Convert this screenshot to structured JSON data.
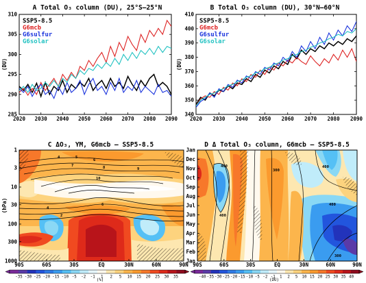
{
  "chart_data": [
    {
      "id": "A",
      "type": "line",
      "title": "A  Total O₃ column (DU), 25°S–25°N",
      "ylabel": "(DU)",
      "xlim": [
        2020,
        2090
      ],
      "ylim": [
        285,
        310
      ],
      "xticks": [
        2020,
        2030,
        2040,
        2050,
        2060,
        2070,
        2080,
        2090
      ],
      "yticks": [
        285,
        290,
        295,
        300,
        305,
        310
      ],
      "legend_position": "top-left",
      "series": [
        {
          "name": "SSP5-8.5",
          "color": "#000000",
          "x": [
            2020,
            2022,
            2024,
            2026,
            2028,
            2030,
            2032,
            2034,
            2036,
            2038,
            2040,
            2042,
            2044,
            2046,
            2048,
            2050,
            2052,
            2054,
            2056,
            2058,
            2060,
            2062,
            2064,
            2066,
            2068,
            2070,
            2072,
            2074,
            2076,
            2078,
            2080,
            2082,
            2084,
            2086,
            2088,
            2090
          ],
          "values": [
            292.0,
            291.0,
            292.5,
            290.5,
            292.8,
            289.5,
            293.0,
            290.0,
            292.0,
            291.0,
            293.5,
            290.5,
            292.5,
            291.5,
            293.0,
            292.0,
            294.0,
            291.0,
            292.5,
            293.5,
            291.5,
            294.0,
            292.0,
            293.0,
            291.5,
            294.5,
            292.5,
            291.0,
            293.5,
            292.0,
            294.0,
            295.0,
            292.0,
            293.0,
            292.0,
            290.0
          ]
        },
        {
          "name": "G6mcb",
          "color": "#dd2222",
          "x": [
            2020,
            2022,
            2024,
            2026,
            2028,
            2030,
            2032,
            2034,
            2036,
            2038,
            2040,
            2042,
            2044,
            2046,
            2048,
            2050,
            2052,
            2054,
            2056,
            2058,
            2060,
            2062,
            2064,
            2066,
            2068,
            2070,
            2072,
            2074,
            2076,
            2078,
            2080,
            2082,
            2084,
            2086,
            2088,
            2090
          ],
          "values": [
            290.5,
            291.5,
            289.8,
            291.5,
            290.0,
            293.0,
            291.0,
            292.5,
            294.0,
            292.0,
            295.0,
            293.5,
            295.5,
            294.0,
            297.0,
            296.0,
            298.5,
            297.0,
            299.0,
            300.5,
            298.0,
            302.0,
            299.5,
            303.0,
            301.0,
            304.5,
            302.5,
            301.0,
            305.0,
            303.0,
            306.0,
            304.5,
            306.5,
            305.0,
            308.5,
            307.0
          ]
        },
        {
          "name": "G6sulfur",
          "color": "#1a33dd",
          "x": [
            2020,
            2022,
            2024,
            2026,
            2028,
            2030,
            2032,
            2034,
            2036,
            2038,
            2040,
            2042,
            2044,
            2046,
            2048,
            2050,
            2052,
            2054,
            2056,
            2058,
            2060,
            2062,
            2064,
            2066,
            2068,
            2070,
            2072,
            2074,
            2076,
            2078,
            2080,
            2082,
            2084,
            2086,
            2088,
            2090
          ],
          "values": [
            291.5,
            290.5,
            292.0,
            289.5,
            291.5,
            292.5,
            290.0,
            291.0,
            289.0,
            292.0,
            290.0,
            293.0,
            290.5,
            291.5,
            293.5,
            290.0,
            292.5,
            294.0,
            291.0,
            292.0,
            290.0,
            293.0,
            291.0,
            294.0,
            290.5,
            292.0,
            291.0,
            293.5,
            290.5,
            292.0,
            291.0,
            290.0,
            292.5,
            290.5,
            291.0,
            289.5
          ]
        },
        {
          "name": "G6solar",
          "color": "#22c2c2",
          "x": [
            2020,
            2022,
            2024,
            2026,
            2028,
            2030,
            2032,
            2034,
            2036,
            2038,
            2040,
            2042,
            2044,
            2046,
            2048,
            2050,
            2052,
            2054,
            2056,
            2058,
            2060,
            2062,
            2064,
            2066,
            2068,
            2070,
            2072,
            2074,
            2076,
            2078,
            2080,
            2082,
            2084,
            2086,
            2088,
            2090
          ],
          "values": [
            291.0,
            292.0,
            290.5,
            292.5,
            291.0,
            291.5,
            293.0,
            292.0,
            293.5,
            292.0,
            294.0,
            293.0,
            295.0,
            294.0,
            296.0,
            295.0,
            296.5,
            296.0,
            297.5,
            296.5,
            298.0,
            297.0,
            299.0,
            297.5,
            300.0,
            298.5,
            300.5,
            299.0,
            301.0,
            300.0,
            301.5,
            300.0,
            302.0,
            300.5,
            302.0,
            301.5
          ]
        }
      ]
    },
    {
      "id": "B",
      "type": "line",
      "title": "B  Total O₃ column (DU), 30°N–60°N",
      "ylabel": "(DU)",
      "xlim": [
        2020,
        2090
      ],
      "ylim": [
        340,
        410
      ],
      "xticks": [
        2020,
        2030,
        2040,
        2050,
        2060,
        2070,
        2080,
        2090
      ],
      "yticks": [
        340,
        350,
        360,
        370,
        380,
        390,
        400,
        410
      ],
      "legend_position": "top-left",
      "series": [
        {
          "name": "SSP5-8.5",
          "color": "#000000",
          "x": [
            2020,
            2022,
            2024,
            2026,
            2028,
            2030,
            2032,
            2034,
            2036,
            2038,
            2040,
            2042,
            2044,
            2046,
            2048,
            2050,
            2052,
            2054,
            2056,
            2058,
            2060,
            2062,
            2064,
            2066,
            2068,
            2070,
            2072,
            2074,
            2076,
            2078,
            2080,
            2082,
            2084,
            2086,
            2088,
            2090
          ],
          "values": [
            347,
            352,
            350,
            355,
            353,
            357,
            356,
            360,
            358,
            362,
            361,
            365,
            363,
            368,
            366,
            371,
            369,
            374,
            372,
            377,
            375,
            382,
            379,
            385,
            382,
            386,
            384,
            388,
            386,
            390,
            388,
            391,
            389,
            393,
            391,
            395
          ]
        },
        {
          "name": "G6mcb",
          "color": "#dd2222",
          "x": [
            2020,
            2022,
            2024,
            2026,
            2028,
            2030,
            2032,
            2034,
            2036,
            2038,
            2040,
            2042,
            2044,
            2046,
            2048,
            2050,
            2052,
            2054,
            2056,
            2058,
            2060,
            2062,
            2064,
            2066,
            2068,
            2070,
            2072,
            2074,
            2076,
            2078,
            2080,
            2082,
            2084,
            2086,
            2088,
            2090
          ],
          "values": [
            346,
            351,
            353,
            352,
            356,
            354,
            359,
            357,
            362,
            360,
            365,
            363,
            368,
            366,
            371,
            368,
            373,
            371,
            376,
            374,
            378,
            376,
            380,
            377,
            375,
            381,
            377,
            374,
            379,
            376,
            382,
            378,
            385,
            380,
            386,
            377
          ]
        },
        {
          "name": "G6sulfur",
          "color": "#1a33dd",
          "x": [
            2020,
            2022,
            2024,
            2026,
            2028,
            2030,
            2032,
            2034,
            2036,
            2038,
            2040,
            2042,
            2044,
            2046,
            2048,
            2050,
            2052,
            2054,
            2056,
            2058,
            2060,
            2062,
            2064,
            2066,
            2068,
            2070,
            2072,
            2074,
            2076,
            2078,
            2080,
            2082,
            2084,
            2086,
            2088,
            2090
          ],
          "values": [
            345,
            349,
            351,
            355,
            352,
            358,
            356,
            361,
            359,
            364,
            362,
            367,
            365,
            370,
            368,
            373,
            371,
            376,
            374,
            380,
            377,
            384,
            380,
            388,
            384,
            391,
            386,
            394,
            389,
            397,
            392,
            399,
            395,
            402,
            398,
            405
          ]
        },
        {
          "name": "G6solar",
          "color": "#22c2c2",
          "x": [
            2020,
            2022,
            2024,
            2026,
            2028,
            2030,
            2032,
            2034,
            2036,
            2038,
            2040,
            2042,
            2044,
            2046,
            2048,
            2050,
            2052,
            2054,
            2056,
            2058,
            2060,
            2062,
            2064,
            2066,
            2068,
            2070,
            2072,
            2074,
            2076,
            2078,
            2080,
            2082,
            2084,
            2086,
            2088,
            2090
          ],
          "values": [
            346,
            350,
            352,
            354,
            355,
            357,
            358,
            360,
            361,
            363,
            364,
            366,
            367,
            369,
            370,
            372,
            373,
            375,
            376,
            378,
            379,
            381,
            382,
            384,
            385,
            387,
            388,
            390,
            391,
            393,
            394,
            396,
            395,
            398,
            397,
            400
          ]
        }
      ]
    },
    {
      "id": "C",
      "type": "heatmap",
      "title": "C  ΔO₃, YM, G6mcb – SSP5-8.5",
      "ylabel": "(hPa)",
      "xticks": [
        "90S",
        "60S",
        "30S",
        "EQ",
        "30N",
        "60N",
        "90N"
      ],
      "yticks": [
        "1",
        "3",
        "10",
        "30",
        "100",
        "300",
        "1000"
      ],
      "ylim": [
        1000,
        1
      ],
      "log_scale_y": true,
      "colorbar_unit": "(%)",
      "colorbar_ticks": [
        -35,
        -30,
        -25,
        -20,
        -15,
        -10,
        -5,
        -2,
        -1,
        1,
        2,
        5,
        10,
        15,
        20,
        25,
        30,
        35
      ],
      "contour_labels": [
        "4",
        "5",
        "6",
        "7",
        "8",
        "9",
        "10",
        "2",
        "4",
        "6"
      ]
    },
    {
      "id": "D",
      "type": "heatmap",
      "title": "D  Δ Total O₃ column, G6mcb – SSP5-8.5",
      "ylabel": "",
      "xticks": [
        "90S",
        "60S",
        "30S",
        "EQ",
        "30N",
        "60N",
        "90N"
      ],
      "yticks": [
        "Jan",
        "Feb",
        "Mar",
        "Apr",
        "May",
        "Jun",
        "Jul",
        "Aug",
        "Sep",
        "Oct",
        "Nov",
        "Dec",
        "Jan"
      ],
      "colorbar_unit": "(DU)",
      "colorbar_ticks": [
        -40,
        -35,
        -30,
        -25,
        -20,
        -15,
        -10,
        -5,
        -2,
        -1,
        1,
        2,
        5,
        10,
        15,
        20,
        25,
        30,
        35,
        40
      ],
      "contour_labels": [
        "400",
        "400",
        "300",
        "400",
        "400",
        "300"
      ]
    }
  ],
  "colors": {
    "neg": [
      "#7a2a9a",
      "#5a3aa8",
      "#2233bb",
      "#2255dd",
      "#2f7ae5",
      "#3a9cf0",
      "#55c0f5",
      "#8ad8f5",
      "#c0ecfa",
      "#e6f6fc"
    ],
    "pos": [
      "#fff9ee",
      "#fde7b0",
      "#fdd37e",
      "#fcb54c",
      "#fb9a2e",
      "#f7782a",
      "#f04a20",
      "#de2a1a",
      "#b8141a",
      "#8e0b1e"
    ]
  }
}
